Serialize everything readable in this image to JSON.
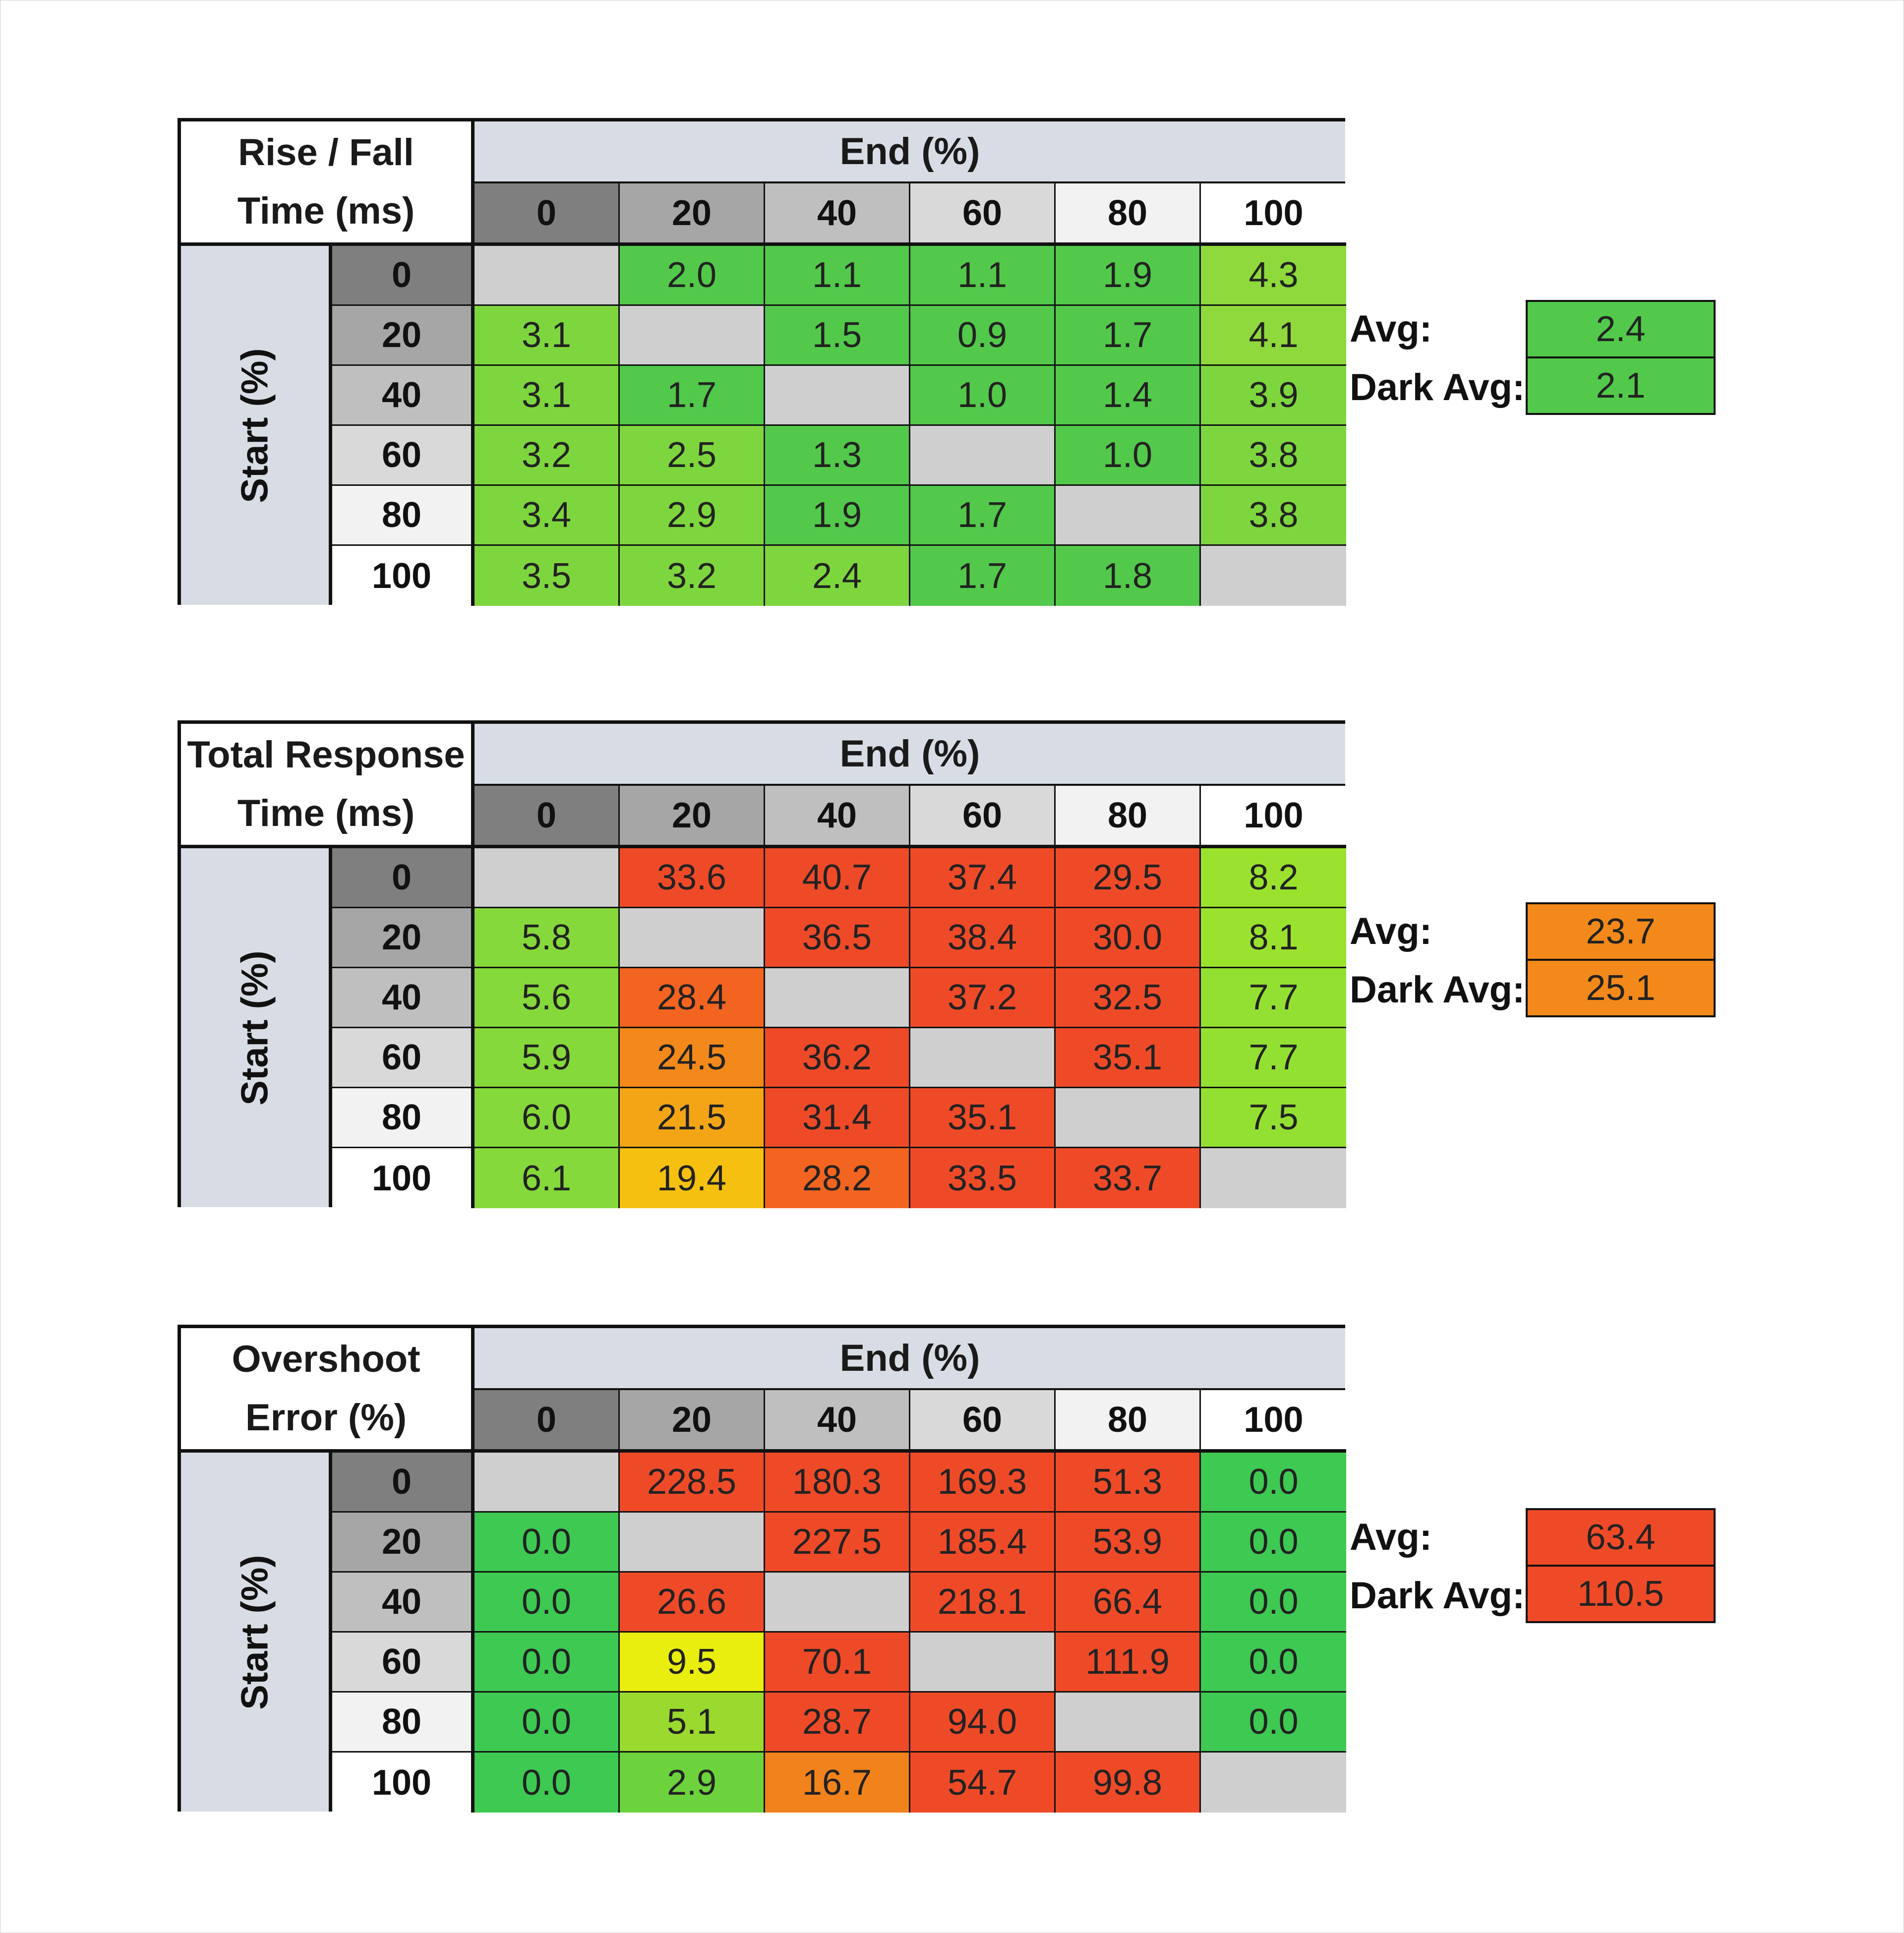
{
  "colors": {
    "grid_gray": "#cfcfcf",
    "hdr0": "#7f7f7f",
    "hdr20": "#a6a6a6",
    "hdr40": "#bfbfbf",
    "hdr60": "#d9d9d9",
    "hdr80": "#f2f2f2",
    "hdr100": "#ffffff"
  },
  "chart_data": [
    {
      "type": "heatmap",
      "title": [
        "Rise / Fall",
        "Time (ms)"
      ],
      "xlabel": "End (%)",
      "ylabel": "Start (%)",
      "categories": [
        "0",
        "20",
        "40",
        "60",
        "80",
        "100"
      ],
      "rows": [
        "0",
        "20",
        "40",
        "60",
        "80",
        "100"
      ],
      "values": [
        [
          null,
          "2.0",
          "1.1",
          "1.1",
          "1.9",
          "4.3"
        ],
        [
          "3.1",
          null,
          "1.5",
          "0.9",
          "1.7",
          "4.1"
        ],
        [
          "3.1",
          "1.7",
          null,
          "1.0",
          "1.4",
          "3.9"
        ],
        [
          "3.2",
          "2.5",
          "1.3",
          null,
          "1.0",
          "3.8"
        ],
        [
          "3.4",
          "2.9",
          "1.9",
          "1.7",
          null,
          "3.8"
        ],
        [
          "3.5",
          "3.2",
          "2.4",
          "1.7",
          "1.8",
          null
        ]
      ],
      "cell_colors": [
        [
          null,
          "#52c94a",
          "#52c94a",
          "#52c94a",
          "#52c94a",
          "#8fd93c"
        ],
        [
          "#7ed63e",
          null,
          "#52c94a",
          "#52c94a",
          "#52c94a",
          "#8fd93c"
        ],
        [
          "#7ed63e",
          "#52c94a",
          null,
          "#52c94a",
          "#52c94a",
          "#7ed63e"
        ],
        [
          "#7ed63e",
          "#7ed63e",
          "#52c94a",
          null,
          "#52c94a",
          "#7ed63e"
        ],
        [
          "#7ed63e",
          "#7ed63e",
          "#52c94a",
          "#52c94a",
          null,
          "#7ed63e"
        ],
        [
          "#7ed63e",
          "#7ed63e",
          "#7ed63e",
          "#52c94a",
          "#52c94a",
          null
        ]
      ],
      "avg_label": "Avg:",
      "avg": "2.4",
      "avg_color": "#52c94a",
      "dark_avg_label": "Dark Avg:",
      "dark_avg": "2.1",
      "dark_avg_color": "#52c94a"
    },
    {
      "type": "heatmap",
      "title": [
        "Total Response",
        "Time (ms)"
      ],
      "xlabel": "End (%)",
      "ylabel": "Start (%)",
      "categories": [
        "0",
        "20",
        "40",
        "60",
        "80",
        "100"
      ],
      "rows": [
        "0",
        "20",
        "40",
        "60",
        "80",
        "100"
      ],
      "values": [
        [
          null,
          "33.6",
          "40.7",
          "37.4",
          "29.5",
          "8.2"
        ],
        [
          "5.8",
          null,
          "36.5",
          "38.4",
          "30.0",
          "8.1"
        ],
        [
          "5.6",
          "28.4",
          null,
          "37.2",
          "32.5",
          "7.7"
        ],
        [
          "5.9",
          "24.5",
          "36.2",
          null,
          "35.1",
          "7.7"
        ],
        [
          "6.0",
          "21.5",
          "31.4",
          "35.1",
          null,
          "7.5"
        ],
        [
          "6.1",
          "19.4",
          "28.2",
          "33.5",
          "33.7",
          null
        ]
      ],
      "cell_colors": [
        [
          null,
          "#ef4a28",
          "#ef4a28",
          "#ef4a28",
          "#ef4a28",
          "#9be22e"
        ],
        [
          "#85d93a",
          null,
          "#ef4a28",
          "#ef4a28",
          "#ef4a28",
          "#9be22e"
        ],
        [
          "#85d93a",
          "#f2641f",
          null,
          "#ef4a28",
          "#ef4a28",
          "#94e032"
        ],
        [
          "#85d93a",
          "#f2891a",
          "#ef4a28",
          null,
          "#ef4a28",
          "#94e032"
        ],
        [
          "#85d93a",
          "#f3a515",
          "#ef4a28",
          "#ef4a28",
          null,
          "#94e032"
        ],
        [
          "#85d93a",
          "#f5c00f",
          "#f2641f",
          "#ef4a28",
          "#ef4a28",
          null
        ]
      ],
      "avg_label": "Avg:",
      "avg": "23.7",
      "avg_color": "#f2891a",
      "dark_avg_label": "Dark Avg:",
      "dark_avg": "25.1",
      "dark_avg_color": "#f2891a"
    },
    {
      "type": "heatmap",
      "title": [
        "Overshoot",
        "Error (%)"
      ],
      "xlabel": "End (%)",
      "ylabel": "Start (%)",
      "categories": [
        "0",
        "20",
        "40",
        "60",
        "80",
        "100"
      ],
      "rows": [
        "0",
        "20",
        "40",
        "60",
        "80",
        "100"
      ],
      "values": [
        [
          null,
          "228.5",
          "180.3",
          "169.3",
          "51.3",
          "0.0"
        ],
        [
          "0.0",
          null,
          "227.5",
          "185.4",
          "53.9",
          "0.0"
        ],
        [
          "0.0",
          "26.6",
          null,
          "218.1",
          "66.4",
          "0.0"
        ],
        [
          "0.0",
          "9.5",
          "70.1",
          null,
          "111.9",
          "0.0"
        ],
        [
          "0.0",
          "5.1",
          "28.7",
          "94.0",
          null,
          "0.0"
        ],
        [
          "0.0",
          "2.9",
          "16.7",
          "54.7",
          "99.8",
          null
        ]
      ],
      "cell_colors": [
        [
          null,
          "#ef4a28",
          "#ef4a28",
          "#ef4a28",
          "#ef4a28",
          "#3dc952"
        ],
        [
          "#3dc952",
          null,
          "#ef4a28",
          "#ef4a28",
          "#ef4a28",
          "#3dc952"
        ],
        [
          "#3dc952",
          "#ef4a28",
          null,
          "#ef4a28",
          "#ef4a28",
          "#3dc952"
        ],
        [
          "#3dc952",
          "#eaee0e",
          "#ef4a28",
          null,
          "#ef4a28",
          "#3dc952"
        ],
        [
          "#3dc952",
          "#9ad92e",
          "#ef4a28",
          "#ef4a28",
          null,
          "#3dc952"
        ],
        [
          "#3dc952",
          "#6dd33c",
          "#f2821c",
          "#ef4a28",
          "#ef4a28",
          null
        ]
      ],
      "avg_label": "Avg:",
      "avg": "63.4",
      "avg_color": "#ef4a28",
      "dark_avg_label": "Dark Avg:",
      "dark_avg": "110.5",
      "dark_avg_color": "#ef4a28"
    }
  ]
}
